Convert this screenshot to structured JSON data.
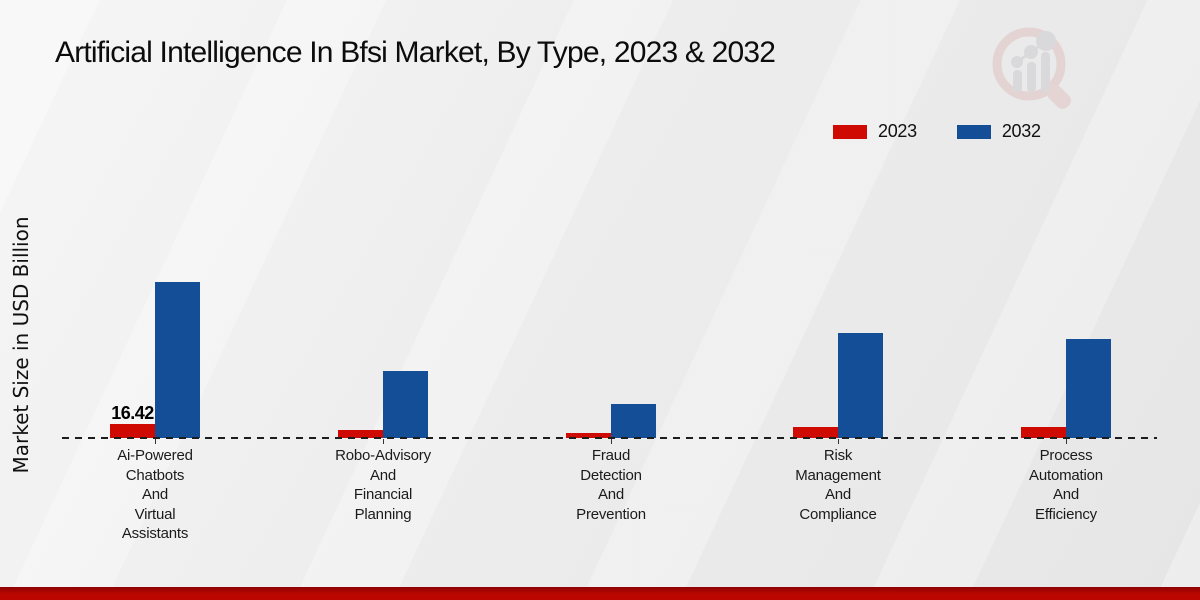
{
  "title": "Artificial Intelligence In Bfsi Market, By Type, 2023 & 2032",
  "ylabel": "Market Size in USD Billion",
  "legend": {
    "position": "top-right",
    "items": [
      "2023",
      "2032"
    ]
  },
  "colors": {
    "series_2023": "#cf0a03",
    "series_2032": "#134e97",
    "footer_bar": "#b30400",
    "baseline": "#1d1d1d"
  },
  "chart_data": {
    "type": "bar",
    "title": "Artificial Intelligence In Bfsi Market, By Type, 2023 & 2032",
    "xlabel": "",
    "ylabel": "Market Size in USD Billion",
    "grid": false,
    "y_axis_ticks_visible": false,
    "baseline_style": "dashed",
    "legend_position": "top-right",
    "categories": [
      "Ai-Powered\nChatbots\nAnd\nVirtual\nAssistants",
      "Robo-Advisory\nAnd\nFinancial\nPlanning",
      "Fraud\nDetection\nAnd\nPrevention",
      "Risk\nManagement\nAnd\nCompliance",
      "Process\nAutomation\nAnd\nEfficiency"
    ],
    "series": [
      {
        "name": "2023",
        "color": "#cf0a03",
        "values": [
          16.42,
          8.8,
          5.9,
          12.9,
          12.9
        ],
        "data_labels": [
          "16.42",
          null,
          null,
          null,
          null
        ]
      },
      {
        "name": "2032",
        "color": "#134e97",
        "values": [
          183,
          78.6,
          39.9,
          123,
          116
        ],
        "data_labels": [
          null,
          null,
          null,
          null,
          null
        ]
      }
    ],
    "note_only_labeled_value": "16.42"
  },
  "watermark_icon": "market-research-future-logo"
}
